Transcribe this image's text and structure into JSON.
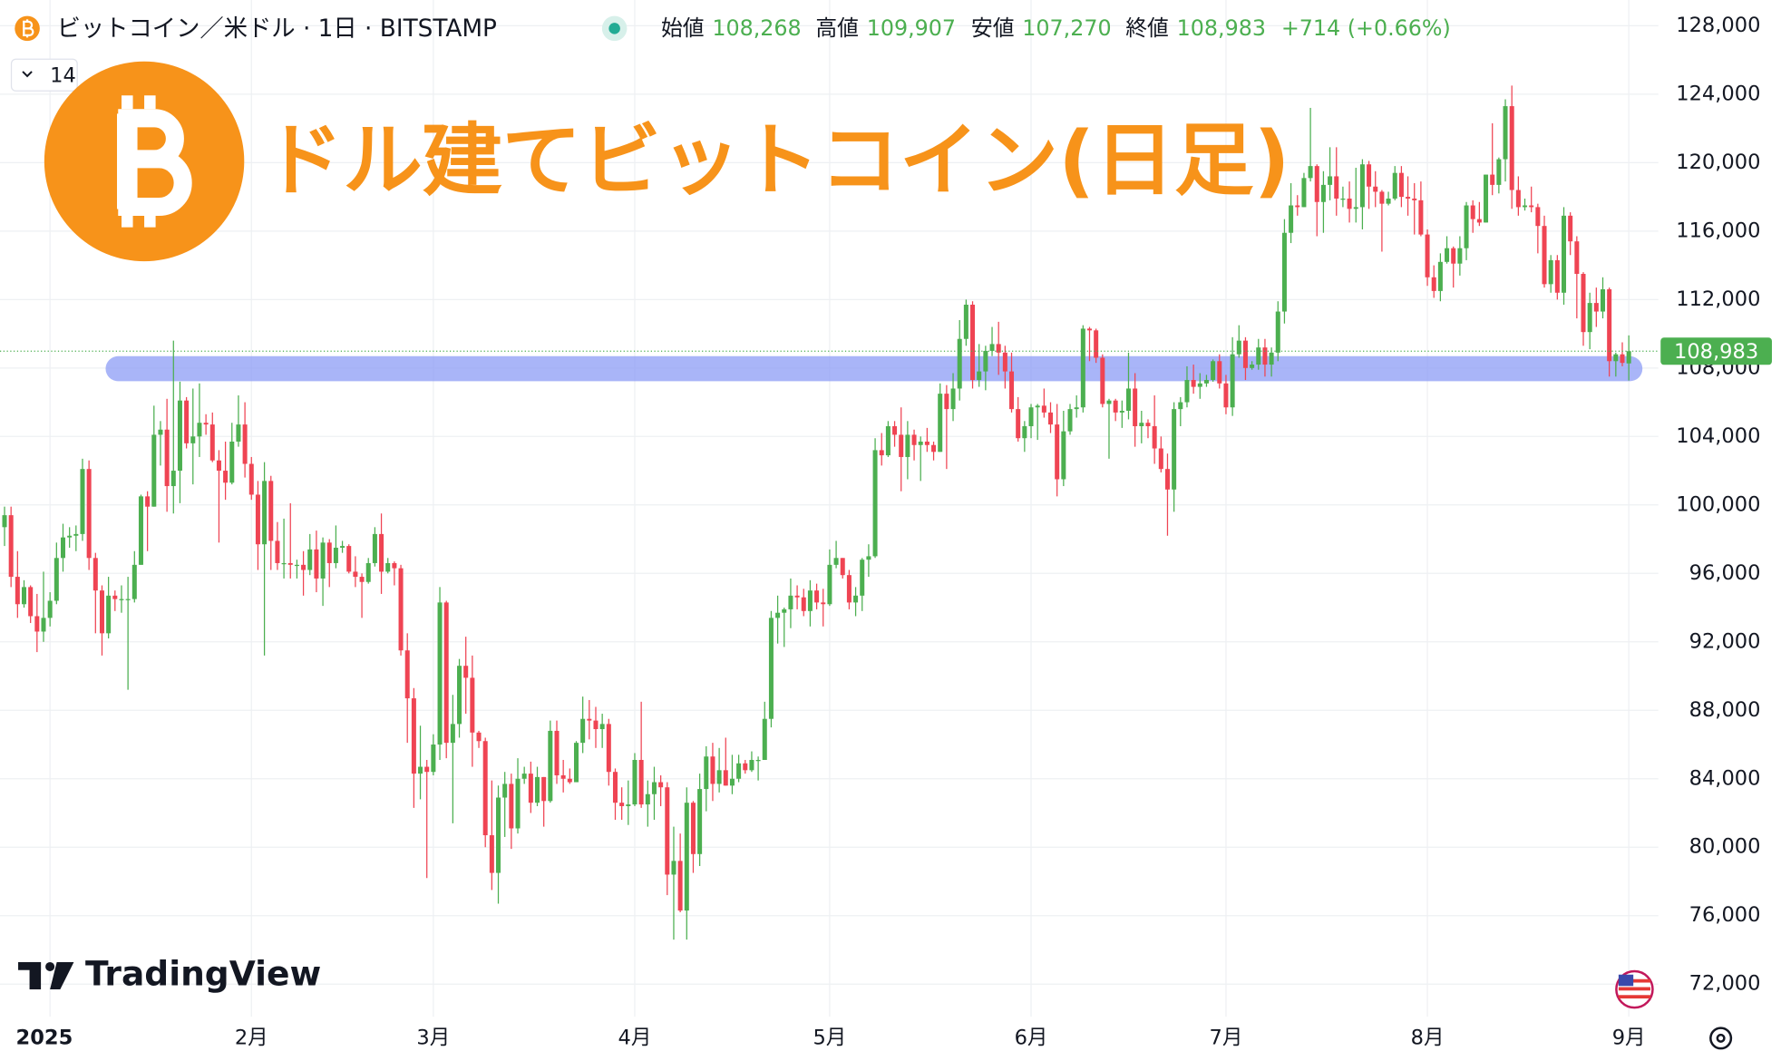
{
  "header": {
    "symbol": "ビットコイン／米ドル · 1日 · BITSTAMP",
    "ohlc": [
      {
        "label": "始値",
        "value": "108,268"
      },
      {
        "label": "高値",
        "value": "109,907"
      },
      {
        "label": "安値",
        "value": "107,270"
      },
      {
        "label": "終値",
        "value": "108,983"
      }
    ],
    "change": "+714 (+0.66%)",
    "indicator": "14"
  },
  "watermark": "TradingView",
  "chart_data": {
    "type": "candlestick",
    "title": "ドル建てビットコイン(日足)",
    "categories": [
      null,
      null,
      null,
      null,
      null,
      null,
      null,
      "2025",
      null,
      null,
      null,
      null,
      null,
      null,
      null,
      null,
      null,
      null,
      null,
      null,
      null,
      null,
      null,
      null,
      null,
      null,
      null,
      null,
      null,
      null,
      null,
      null,
      null,
      null,
      null,
      null,
      null,
      null,
      "2月",
      null,
      null,
      null,
      null,
      null,
      null,
      null,
      null,
      null,
      null,
      null,
      null,
      null,
      null,
      null,
      null,
      null,
      null,
      null,
      null,
      null,
      null,
      null,
      null,
      null,
      null,
      null,
      "3月",
      null,
      null,
      null,
      null,
      null,
      null,
      null,
      null,
      null,
      null,
      null,
      null,
      null,
      null,
      null,
      null,
      null,
      null,
      null,
      null,
      null,
      null,
      null,
      null,
      null,
      null,
      null,
      null,
      null,
      null,
      "4月",
      null,
      null,
      null,
      null,
      null,
      null,
      null,
      null,
      null,
      null,
      null,
      null,
      null,
      null,
      null,
      null,
      null,
      null,
      null,
      null,
      null,
      null,
      null,
      null,
      null,
      null,
      null,
      null,
      null,
      "5月",
      null,
      null,
      null,
      null,
      null,
      null,
      null,
      null,
      null,
      null,
      null,
      null,
      null,
      null,
      null,
      null,
      null,
      null,
      null,
      null,
      null,
      null,
      null,
      null,
      null,
      null,
      null,
      null,
      null,
      null,
      "6月",
      null,
      null,
      null,
      null,
      null,
      null,
      null,
      null,
      null,
      null,
      null,
      null,
      null,
      null,
      null,
      null,
      null,
      null,
      null,
      null,
      null,
      null,
      null,
      null,
      null,
      null,
      null,
      null,
      null,
      "7月",
      null,
      null,
      null,
      null,
      null,
      null,
      null,
      null,
      null,
      null,
      null,
      null,
      null,
      null,
      null,
      null,
      null,
      null,
      null,
      null,
      null,
      null,
      null,
      null,
      null,
      null,
      null,
      null,
      null,
      null,
      "8月",
      null,
      null,
      null,
      null,
      null,
      null,
      null,
      null,
      null,
      null,
      null,
      null,
      null,
      null,
      null,
      null,
      null,
      null,
      null,
      null,
      null,
      null,
      null,
      null,
      null,
      null,
      null,
      null,
      null,
      null,
      "9月"
    ],
    "open": [
      98700,
      99400,
      95800,
      94200,
      95200,
      93500,
      92600,
      93400,
      94400,
      96900,
      98100,
      98200,
      98300,
      102100,
      96900,
      95000,
      92500,
      94700,
      94500,
      94500,
      94500,
      96500,
      100500,
      99900,
      104100,
      104400,
      101100,
      102000,
      106100,
      103600,
      104000,
      104800,
      104700,
      102600,
      102000,
      101300,
      103700,
      104700,
      102400,
      100600,
      97700,
      101400,
      97900,
      96600,
      96600,
      96500,
      96500,
      96200,
      97400,
      95700,
      97800,
      96600,
      97500,
      97600,
      96100,
      95800,
      95500,
      96600,
      98300,
      96100,
      96600,
      96300,
      91500,
      88700,
      84300,
      84700,
      84400,
      86000,
      94300,
      86100,
      87200,
      90600,
      89900,
      86700,
      86200,
      80700,
      78500,
      82900,
      83700,
      81100,
      84000,
      84300,
      82600,
      84100,
      82700,
      86800,
      84200,
      84000,
      83800,
      86100,
      87500,
      87400,
      86900,
      87200,
      84400,
      82600,
      82400,
      82500,
      85100,
      82500,
      83100,
      83800,
      83500,
      78400,
      79200,
      76300,
      82600,
      79600,
      83400,
      85300,
      83700,
      84500,
      83600,
      84000,
      84900,
      84500,
      85100,
      85100,
      87500,
      93400,
      93700,
      93900,
      94700,
      94600,
      93800,
      95000,
      94300,
      94200,
      96500,
      96900,
      95900,
      94300,
      94700,
      96800,
      97000,
      103200,
      102900,
      104600,
      104100,
      102800,
      104100,
      103500,
      103700,
      103500,
      103100,
      106500,
      105600,
      106800,
      109700,
      111700,
      107300,
      107800,
      109000,
      109400,
      108900,
      107800,
      105600,
      103900,
      104600,
      105700,
      105800,
      105400,
      104700,
      101500,
      104300,
      105600,
      105700,
      110300,
      110200,
      108600,
      105900,
      106100,
      105400,
      105500,
      106800,
      104600,
      104800,
      104600,
      103300,
      102100,
      100900,
      105600,
      106000,
      107300,
      106900,
      107100,
      107300,
      108400,
      107100,
      105700,
      108800,
      109600,
      108000,
      108200,
      109200,
      108200,
      108900,
      111300,
      115900,
      117500,
      117400,
      119100,
      119800,
      117700,
      118700,
      119200,
      117900,
      117900,
      117300,
      117400,
      119900,
      118600,
      118300,
      117600,
      117900,
      119400,
      118000,
      117900,
      117800,
      115800,
      113300,
      112500,
      114200,
      115000,
      114100,
      115000,
      117500,
      116700,
      116500,
      119300,
      118700,
      120200,
      123300,
      118400,
      117400,
      117500,
      117400,
      116300,
      112900,
      114300,
      112400,
      116900,
      115400,
      113500,
      110100,
      111800,
      111300,
      112600,
      108400,
      108800,
      108268
    ],
    "high": [
      99900,
      99900,
      97300,
      95600,
      95300,
      94800,
      96100,
      94900,
      97800,
      98900,
      98700,
      98800,
      102700,
      102600,
      97200,
      95300,
      95800,
      95000,
      95300,
      95800,
      97300,
      100600,
      100800,
      105800,
      104900,
      106200,
      109600,
      107200,
      106300,
      106800,
      107100,
      105300,
      105400,
      103200,
      103700,
      104800,
      106400,
      106000,
      102800,
      101400,
      102500,
      101700,
      99000,
      99200,
      100100,
      96800,
      97300,
      98300,
      98500,
      98100,
      98000,
      98800,
      97900,
      97700,
      97000,
      96000,
      96900,
      98700,
      99500,
      96900,
      96700,
      96500,
      92500,
      89300,
      87100,
      85100,
      86600,
      95200,
      94400,
      88900,
      91000,
      92300,
      91200,
      86800,
      86400,
      83900,
      83600,
      84400,
      84300,
      85200,
      84700,
      85000,
      84700,
      84100,
      87400,
      87400,
      85100,
      84600,
      86200,
      88800,
      88600,
      88200,
      87800,
      87500,
      84600,
      83500,
      83900,
      85500,
      88500,
      83900,
      84700,
      84200,
      83800,
      81200,
      80800,
      83500,
      82700,
      84300,
      85900,
      86100,
      85800,
      86400,
      85400,
      85400,
      85100,
      85600,
      85300,
      88500,
      93800,
      94700,
      94000,
      95700,
      95300,
      95100,
      95600,
      95400,
      95100,
      97400,
      97900,
      96900,
      96200,
      95200,
      96900,
      97700,
      103900,
      104200,
      104900,
      104900,
      105700,
      104900,
      104400,
      104000,
      104500,
      103700,
      107100,
      107000,
      107700,
      110800,
      112000,
      111900,
      109400,
      109300,
      110400,
      110700,
      109300,
      108900,
      106300,
      104900,
      105900,
      105900,
      106800,
      106000,
      105900,
      105500,
      105900,
      106400,
      110500,
      110400,
      110300,
      108800,
      106200,
      106200,
      106100,
      108900,
      107700,
      105500,
      105000,
      106400,
      104000,
      103000,
      106000,
      106300,
      108100,
      108200,
      107700,
      107600,
      108500,
      108800,
      107600,
      109800,
      110500,
      109800,
      108400,
      109700,
      109700,
      109200,
      111900,
      116700,
      118800,
      118100,
      119400,
      123200,
      119900,
      119500,
      120900,
      120900,
      118600,
      118900,
      119700,
      120200,
      120100,
      119500,
      118400,
      118300,
      119800,
      119800,
      119200,
      118800,
      118900,
      116100,
      114000,
      114700,
      115700,
      115100,
      115700,
      117700,
      117800,
      117700,
      119300,
      122300,
      120300,
      123700,
      124500,
      119200,
      117900,
      118600,
      117600,
      116900,
      114600,
      114600,
      117400,
      117100,
      115700,
      113600,
      112400,
      112700,
      113300,
      112700,
      108900,
      109500,
      109907
    ],
    "low": [
      97600,
      95200,
      93400,
      94000,
      93100,
      91400,
      92000,
      92900,
      94200,
      96100,
      97500,
      97300,
      97900,
      96200,
      92500,
      91200,
      92200,
      93800,
      93700,
      89200,
      94300,
      96500,
      97300,
      99900,
      102300,
      99600,
      99500,
      100100,
      103300,
      101200,
      102800,
      104100,
      102500,
      97800,
      100300,
      101200,
      103400,
      101600,
      100300,
      96200,
      91200,
      96200,
      96200,
      95700,
      95700,
      95700,
      94700,
      95900,
      94900,
      94100,
      95200,
      96300,
      97200,
      96000,
      95200,
      93400,
      95400,
      96400,
      94800,
      96000,
      95300,
      91200,
      86100,
      82300,
      82800,
      78200,
      84200,
      85100,
      85200,
      81400,
      86400,
      87800,
      84700,
      85800,
      80000,
      77500,
      76700,
      80600,
      79900,
      80800,
      83700,
      82000,
      82400,
      81200,
      82600,
      83700,
      83200,
      83700,
      83800,
      85500,
      86300,
      85800,
      85800,
      83600,
      81600,
      81600,
      81300,
      82400,
      82300,
      81200,
      81600,
      82400,
      77200,
      74600,
      76200,
      74600,
      78500,
      78900,
      82100,
      82700,
      83200,
      83600,
      83100,
      83800,
      84300,
      84400,
      83900,
      85100,
      87000,
      91900,
      91700,
      92800,
      93900,
      93500,
      92900,
      93900,
      92900,
      94100,
      96300,
      95700,
      93900,
      93500,
      93800,
      95800,
      96900,
      102300,
      102800,
      103400,
      100800,
      101500,
      102600,
      101400,
      103100,
      102600,
      103100,
      102100,
      104900,
      106100,
      109300,
      106800,
      106900,
      106700,
      108700,
      107600,
      106800,
      105400,
      103700,
      103100,
      103900,
      103800,
      105100,
      104200,
      100500,
      101100,
      104100,
      105100,
      105400,
      108400,
      108300,
      105700,
      102700,
      104900,
      104500,
      105000,
      103400,
      103600,
      103900,
      102400,
      101900,
      98200,
      99600,
      104600,
      105700,
      106500,
      106200,
      106900,
      107200,
      106800,
      105300,
      105200,
      108600,
      107300,
      107900,
      107900,
      107500,
      107500,
      108400,
      110600,
      115300,
      116900,
      117400,
      118900,
      115700,
      115900,
      117800,
      116900,
      117400,
      116500,
      116500,
      116100,
      117300,
      117400,
      114800,
      117500,
      117800,
      117400,
      116900,
      115800,
      115700,
      112800,
      112100,
      111900,
      114100,
      112700,
      113400,
      114300,
      115900,
      116300,
      116500,
      118100,
      118200,
      118900,
      117300,
      116900,
      117200,
      117100,
      114700,
      112700,
      112400,
      112000,
      111700,
      114600,
      110900,
      109300,
      109100,
      110400,
      110900,
      107500,
      107500,
      108100,
      107270
    ],
    "close": [
      99400,
      95800,
      94200,
      95200,
      93500,
      92600,
      93400,
      94400,
      96900,
      98100,
      98200,
      98300,
      102100,
      96900,
      95000,
      92500,
      94700,
      94500,
      94500,
      94500,
      96500,
      100500,
      99900,
      104100,
      104400,
      101100,
      102000,
      106100,
      103600,
      104000,
      104800,
      104700,
      102600,
      102000,
      101300,
      103700,
      104700,
      102400,
      100600,
      97700,
      101400,
      97900,
      96600,
      96600,
      96500,
      96500,
      96200,
      97400,
      95700,
      97800,
      96600,
      97500,
      97600,
      96100,
      95800,
      95500,
      96600,
      98300,
      96100,
      96600,
      96300,
      91500,
      88700,
      84300,
      84700,
      84400,
      86000,
      94300,
      86100,
      87200,
      90600,
      89900,
      86700,
      86200,
      80700,
      78500,
      82900,
      83700,
      81100,
      84000,
      84300,
      82600,
      84100,
      82700,
      86800,
      84200,
      84000,
      83800,
      86100,
      87500,
      87400,
      86900,
      87200,
      84400,
      82600,
      82400,
      82500,
      85100,
      82500,
      83100,
      83800,
      83500,
      78400,
      79200,
      76300,
      82600,
      79600,
      83400,
      85300,
      83700,
      84500,
      83600,
      84000,
      84900,
      84500,
      85100,
      85100,
      87500,
      93400,
      93700,
      93900,
      94700,
      94600,
      93800,
      95000,
      94300,
      94200,
      96500,
      96900,
      95900,
      94300,
      94700,
      96800,
      97000,
      103200,
      102900,
      104600,
      104100,
      102800,
      104100,
      103500,
      103700,
      103500,
      103100,
      106500,
      105600,
      106800,
      109700,
      111700,
      107300,
      107800,
      109000,
      109400,
      108900,
      107800,
      105600,
      103900,
      104600,
      105700,
      105800,
      105400,
      104700,
      101500,
      104300,
      105600,
      105700,
      110300,
      110200,
      108600,
      105900,
      106100,
      105400,
      105500,
      106800,
      104600,
      104800,
      104600,
      103300,
      102100,
      100900,
      105600,
      106000,
      107300,
      106900,
      107100,
      107300,
      108400,
      107100,
      105700,
      108800,
      109600,
      108000,
      108200,
      109200,
      108200,
      108900,
      111300,
      115900,
      117500,
      117400,
      119100,
      119800,
      117700,
      118700,
      119200,
      117900,
      117900,
      117300,
      117400,
      119900,
      118600,
      118300,
      117600,
      117900,
      119400,
      118000,
      117900,
      117800,
      115800,
      113300,
      112500,
      114200,
      115000,
      114100,
      115000,
      117500,
      116700,
      116500,
      119300,
      118700,
      120200,
      123300,
      118400,
      117400,
      117500,
      117400,
      116300,
      112900,
      114300,
      112400,
      116900,
      115400,
      113500,
      110100,
      111800,
      111300,
      112600,
      108400,
      108800,
      108300,
      108983
    ],
    "up_color": "#4caf50",
    "down_color": "#ef4453",
    "ylim": [
      70100,
      129500
    ],
    "yticks": [
      {
        "value": 72000,
        "label": "72,000"
      },
      {
        "value": 76000,
        "label": "76,000"
      },
      {
        "value": 80000,
        "label": "80,000"
      },
      {
        "value": 84000,
        "label": "84,000"
      },
      {
        "value": 88000,
        "label": "88,000"
      },
      {
        "value": 92000,
        "label": "92,000"
      },
      {
        "value": 96000,
        "label": "96,000"
      },
      {
        "value": 100000,
        "label": "100,000"
      },
      {
        "value": 104000,
        "label": "104,000"
      },
      {
        "value": 108000,
        "label": "108,000"
      },
      {
        "value": 112000,
        "label": "112,000"
      },
      {
        "value": 116000,
        "label": "116,000"
      },
      {
        "value": 120000,
        "label": "120,000"
      },
      {
        "value": 124000,
        "label": "124,000"
      },
      {
        "value": 128000,
        "label": "128,000"
      }
    ],
    "grid": true,
    "band": {
      "from": 107230,
      "to": 108690,
      "color": "#8c9cf5"
    },
    "last_price": {
      "value": 108983,
      "label": "108,983",
      "color": "#4caf50"
    }
  }
}
